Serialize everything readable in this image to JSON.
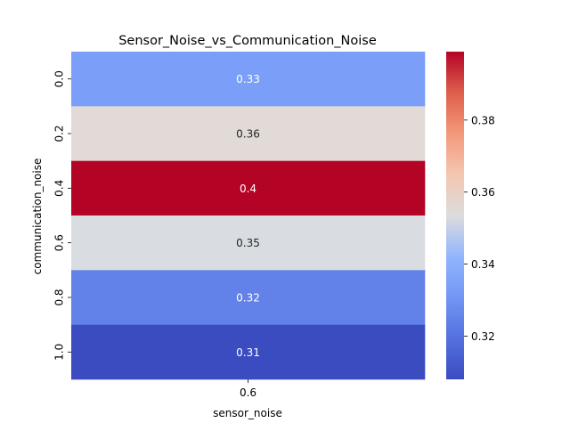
{
  "chart_data": {
    "type": "heatmap",
    "title": "Sensor_Noise_vs_Communication_Noise",
    "xlabel": "sensor_noise",
    "ylabel": "communication_noise",
    "x_categories": [
      "0.6"
    ],
    "y_categories": [
      "0.0",
      "0.2",
      "0.4",
      "0.6",
      "0.8",
      "1.0"
    ],
    "values": [
      [
        0.33
      ],
      [
        0.36
      ],
      [
        0.4
      ],
      [
        0.35
      ],
      [
        0.32
      ],
      [
        0.31
      ]
    ],
    "value_labels": [
      [
        "0.33"
      ],
      [
        "0.36"
      ],
      [
        "0.4"
      ],
      [
        "0.35"
      ],
      [
        "0.32"
      ],
      [
        "0.31"
      ]
    ],
    "colorbar": {
      "colormap": "coolwarm",
      "range": [
        0.308,
        0.399
      ],
      "ticks": [
        0.32,
        0.34,
        0.36,
        0.38
      ],
      "tick_labels": [
        "0.32",
        "0.34",
        "0.36",
        "0.38"
      ]
    },
    "cell_colors": [
      "#7b9ff9",
      "#e1dad6",
      "#b40426",
      "#d9dce1",
      "#6282ea",
      "#3b4cc0"
    ]
  }
}
